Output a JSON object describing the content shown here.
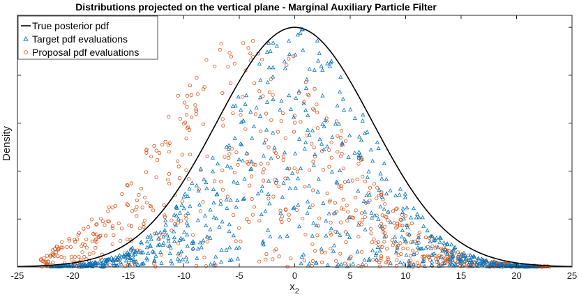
{
  "chart_data": {
    "type": "scatter",
    "title": "Distributions projected on the vertical plane - Marginal Auxiliary Particle Filter",
    "xlabel": "x",
    "xlabel_subscript": "2",
    "ylabel": "Density",
    "xlim": [
      -25,
      25
    ],
    "ylim": [
      0,
      1.05
    ],
    "xticks": [
      -25,
      -20,
      -15,
      -10,
      -5,
      0,
      5,
      10,
      15,
      20,
      25
    ],
    "xtick_labels": [
      "-25",
      "-20",
      "-15",
      "-10",
      "-5",
      "0",
      "5",
      "10",
      "15",
      "20",
      "25"
    ],
    "yticks": [
      0.2,
      0.4,
      0.6,
      0.8,
      1.0
    ],
    "legend_position": "top-left",
    "series": [
      {
        "name": "True posterior pdf",
        "kind": "line",
        "color": "#000000",
        "mean": 0,
        "std": 7.0,
        "peak": 1.0
      },
      {
        "name": "Target pdf evaluations",
        "kind": "scatter",
        "marker": "triangle",
        "color": "#0072BD",
        "mean": 0,
        "std": 6.5,
        "x_range": [
          -22,
          22
        ],
        "count": 750
      },
      {
        "name": "Proposal pdf evaluations",
        "kind": "scatter",
        "marker": "circle",
        "color": "#D95319",
        "mean": -4,
        "std": 8.0,
        "x_range": [
          -23,
          23
        ],
        "count": 750
      }
    ]
  }
}
